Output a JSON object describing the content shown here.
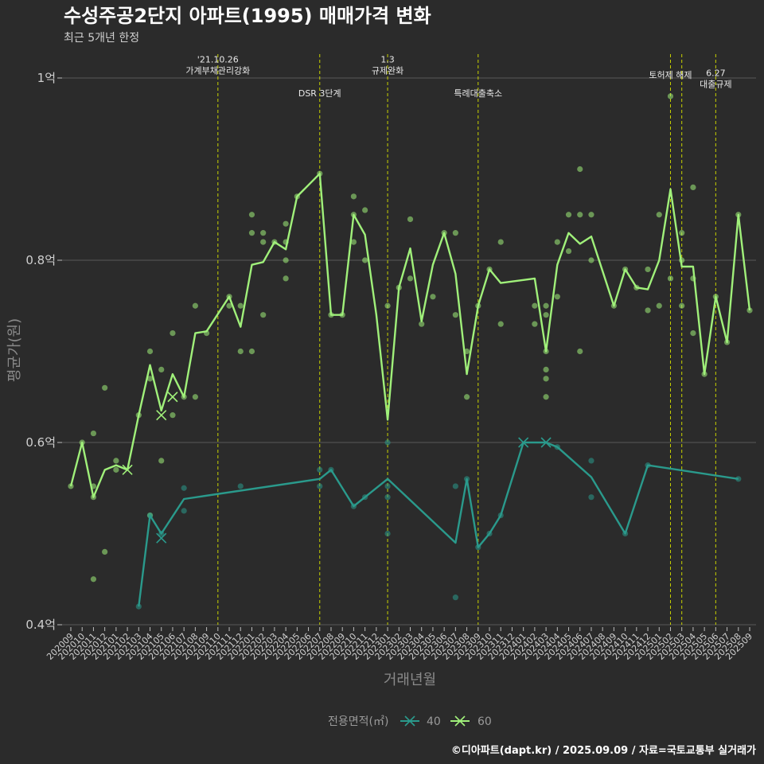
{
  "title": "수성주공2단지 아파트(1995) 매매가격 변화",
  "subtitle": "최근 5개년 한정",
  "caption": "©디아파트(dapt.kr) / 2025.09.09 / 자료=국토교통부 실거래가",
  "colors": {
    "background": "#2b2b2b",
    "grid": "#5a5a5a",
    "event_line": "#c8d200",
    "series_40": "#2a9a8c",
    "series_60": "#a0f07a"
  },
  "chart_data": {
    "type": "line",
    "xlabel": "거래년월",
    "ylabel": "평균가(원)",
    "ylim": [
      0.4,
      1.0
    ],
    "y_ticks": [
      {
        "value": 0.4,
        "label": "0.4억"
      },
      {
        "value": 0.6,
        "label": "0.6억"
      },
      {
        "value": 0.8,
        "label": "0.8억"
      },
      {
        "value": 1.0,
        "label": "1억"
      }
    ],
    "categories": [
      "202009",
      "202010",
      "202011",
      "202012",
      "202101",
      "202102",
      "202103",
      "202104",
      "202105",
      "202106",
      "202107",
      "202108",
      "202109",
      "202110",
      "202111",
      "202112",
      "202201",
      "202202",
      "202203",
      "202204",
      "202205",
      "202206",
      "202207",
      "202208",
      "202209",
      "202210",
      "202211",
      "202212",
      "202301",
      "202302",
      "202303",
      "202304",
      "202305",
      "202306",
      "202307",
      "202308",
      "202309",
      "202310",
      "202311",
      "202312",
      "202401",
      "202402",
      "202403",
      "202404",
      "202405",
      "202406",
      "202407",
      "202408",
      "202409",
      "202410",
      "202411",
      "202412",
      "202501",
      "202502",
      "202503",
      "202504",
      "202505",
      "202506",
      "202507",
      "202508",
      "202509"
    ],
    "legend": {
      "title": "전용면적(㎡)",
      "position": "bottom",
      "items": [
        "40",
        "60"
      ]
    },
    "events": [
      {
        "x": 13,
        "label": "'21.10.26\n가계부채관리강화",
        "label_y": 1.005
      },
      {
        "x": 22,
        "label": "DSR 3단계",
        "label_y": 0.98
      },
      {
        "x": 28,
        "label": "1.3\n규제완화",
        "label_y": 1.005
      },
      {
        "x": 36,
        "label": "특례대출축소",
        "label_y": 0.98
      },
      {
        "x": 53,
        "label": "토허제 해제",
        "label_y": 1.0
      },
      {
        "x": 54,
        "label": "",
        "label_y": 1.0
      },
      {
        "x": 57,
        "label": "6.27\n대출규제",
        "label_y": 0.99
      }
    ],
    "series": [
      {
        "name": "60",
        "color": "#a0f07a",
        "line": [
          [
            0,
            0.552
          ],
          [
            1,
            0.6
          ],
          [
            2,
            0.54
          ],
          [
            3,
            0.57
          ],
          [
            4,
            0.575
          ],
          [
            5,
            0.57
          ],
          [
            6,
            0.63
          ],
          [
            7,
            0.685
          ],
          [
            8,
            0.635
          ],
          [
            9,
            0.675
          ],
          [
            10,
            0.65
          ],
          [
            11,
            0.72
          ],
          [
            12,
            0.722
          ],
          [
            14,
            0.76
          ],
          [
            15,
            0.727
          ],
          [
            16,
            0.795
          ],
          [
            17,
            0.798
          ],
          [
            18,
            0.82
          ],
          [
            19,
            0.812
          ],
          [
            20,
            0.87
          ],
          [
            22,
            0.895
          ],
          [
            23,
            0.74
          ],
          [
            24,
            0.74
          ],
          [
            25,
            0.85
          ],
          [
            26,
            0.828
          ],
          [
            27,
            0.74
          ],
          [
            28,
            0.625
          ],
          [
            29,
            0.77
          ],
          [
            30,
            0.813
          ],
          [
            31,
            0.733
          ],
          [
            32,
            0.795
          ],
          [
            33,
            0.83
          ],
          [
            34,
            0.785
          ],
          [
            35,
            0.675
          ],
          [
            36,
            0.75
          ],
          [
            37,
            0.79
          ],
          [
            38,
            0.775
          ],
          [
            41,
            0.78
          ],
          [
            42,
            0.7
          ],
          [
            43,
            0.795
          ],
          [
            44,
            0.83
          ],
          [
            45,
            0.818
          ],
          [
            46,
            0.826
          ],
          [
            48,
            0.75
          ],
          [
            49,
            0.79
          ],
          [
            50,
            0.77
          ],
          [
            51,
            0.768
          ],
          [
            52,
            0.8
          ],
          [
            53,
            0.878
          ],
          [
            54,
            0.793
          ],
          [
            55,
            0.793
          ],
          [
            56,
            0.675
          ],
          [
            57,
            0.76
          ],
          [
            58,
            0.71
          ],
          [
            59,
            0.85
          ],
          [
            60,
            0.745
          ]
        ],
        "points": [
          [
            0,
            0.552
          ],
          [
            1,
            0.6
          ],
          [
            2,
            0.552
          ],
          [
            2,
            0.54
          ],
          [
            2,
            0.61
          ],
          [
            2,
            0.45
          ],
          [
            3,
            0.66
          ],
          [
            3,
            0.48
          ],
          [
            4,
            0.58
          ],
          [
            4,
            0.57
          ],
          [
            6,
            0.63
          ],
          [
            7,
            0.7
          ],
          [
            7,
            0.67
          ],
          [
            7,
            0.52
          ],
          [
            8,
            0.68
          ],
          [
            8,
            0.58
          ],
          [
            9,
            0.72
          ],
          [
            9,
            0.63
          ],
          [
            10,
            0.65
          ],
          [
            11,
            0.75
          ],
          [
            11,
            0.65
          ],
          [
            12,
            0.72
          ],
          [
            14,
            0.75
          ],
          [
            14,
            0.76
          ],
          [
            15,
            0.75
          ],
          [
            15,
            0.7
          ],
          [
            16,
            0.85
          ],
          [
            16,
            0.83
          ],
          [
            16,
            0.7
          ],
          [
            17,
            0.83
          ],
          [
            17,
            0.82
          ],
          [
            17,
            0.74
          ],
          [
            18,
            0.82
          ],
          [
            19,
            0.84
          ],
          [
            19,
            0.82
          ],
          [
            19,
            0.8
          ],
          [
            19,
            0.78
          ],
          [
            20,
            0.87
          ],
          [
            22,
            0.895
          ],
          [
            23,
            0.74
          ],
          [
            24,
            0.74
          ],
          [
            25,
            0.87
          ],
          [
            25,
            0.85
          ],
          [
            25,
            0.82
          ],
          [
            26,
            0.855
          ],
          [
            26,
            0.8
          ],
          [
            28,
            0.75
          ],
          [
            29,
            0.77
          ],
          [
            30,
            0.845
          ],
          [
            30,
            0.78
          ],
          [
            31,
            0.73
          ],
          [
            32,
            0.76
          ],
          [
            33,
            0.83
          ],
          [
            34,
            0.83
          ],
          [
            34,
            0.74
          ],
          [
            35,
            0.7
          ],
          [
            35,
            0.65
          ],
          [
            36,
            0.75
          ],
          [
            37,
            0.79
          ],
          [
            38,
            0.82
          ],
          [
            38,
            0.73
          ],
          [
            41,
            0.75
          ],
          [
            41,
            0.73
          ],
          [
            42,
            0.75
          ],
          [
            42,
            0.74
          ],
          [
            42,
            0.7
          ],
          [
            42,
            0.68
          ],
          [
            42,
            0.67
          ],
          [
            42,
            0.65
          ],
          [
            43,
            0.76
          ],
          [
            43,
            0.82
          ],
          [
            44,
            0.85
          ],
          [
            44,
            0.81
          ],
          [
            45,
            0.9
          ],
          [
            45,
            0.85
          ],
          [
            45,
            0.7
          ],
          [
            46,
            0.85
          ],
          [
            46,
            0.8
          ],
          [
            48,
            0.75
          ],
          [
            49,
            0.79
          ],
          [
            50,
            0.77
          ],
          [
            51,
            0.79
          ],
          [
            51,
            0.745
          ],
          [
            52,
            0.85
          ],
          [
            52,
            0.75
          ],
          [
            53,
            0.98
          ],
          [
            53,
            0.78
          ],
          [
            54,
            0.83
          ],
          [
            54,
            0.8
          ],
          [
            54,
            0.75
          ],
          [
            55,
            0.88
          ],
          [
            55,
            0.78
          ],
          [
            55,
            0.72
          ],
          [
            56,
            0.675
          ],
          [
            57,
            0.76
          ],
          [
            58,
            0.71
          ],
          [
            59,
            0.85
          ],
          [
            60,
            0.745
          ]
        ],
        "x_marks": [
          [
            5,
            0.57
          ],
          [
            8,
            0.63
          ],
          [
            9,
            0.65
          ]
        ]
      },
      {
        "name": "40",
        "color": "#2a9a8c",
        "line": [
          [
            6,
            0.42
          ],
          [
            7,
            0.52
          ],
          [
            8,
            0.5
          ],
          [
            10,
            0.538
          ],
          [
            22,
            0.56
          ],
          [
            23,
            0.57
          ],
          [
            25,
            0.53
          ],
          [
            26,
            0.54
          ],
          [
            28,
            0.56
          ],
          [
            34,
            0.49
          ],
          [
            35,
            0.56
          ],
          [
            36,
            0.485
          ],
          [
            37,
            0.5
          ],
          [
            38,
            0.52
          ],
          [
            40,
            0.6
          ],
          [
            42,
            0.6
          ],
          [
            43,
            0.595
          ],
          [
            46,
            0.562
          ],
          [
            49,
            0.5
          ],
          [
            51,
            0.575
          ],
          [
            59,
            0.56
          ]
        ],
        "points": [
          [
            6,
            0.42
          ],
          [
            7,
            0.52
          ],
          [
            8,
            0.5
          ],
          [
            10,
            0.55
          ],
          [
            10,
            0.525
          ],
          [
            15,
            0.552
          ],
          [
            22,
            0.57
          ],
          [
            22,
            0.552
          ],
          [
            23,
            0.57
          ],
          [
            25,
            0.53
          ],
          [
            26,
            0.54
          ],
          [
            28,
            0.6
          ],
          [
            28,
            0.552
          ],
          [
            28,
            0.54
          ],
          [
            28,
            0.5
          ],
          [
            34,
            0.552
          ],
          [
            34,
            0.43
          ],
          [
            35,
            0.56
          ],
          [
            36,
            0.485
          ],
          [
            37,
            0.5
          ],
          [
            38,
            0.52
          ],
          [
            43,
            0.595
          ],
          [
            46,
            0.58
          ],
          [
            46,
            0.54
          ],
          [
            49,
            0.5
          ],
          [
            51,
            0.575
          ],
          [
            59,
            0.56
          ]
        ],
        "x_marks": [
          [
            8,
            0.495
          ],
          [
            40,
            0.6
          ],
          [
            42,
            0.6
          ]
        ]
      }
    ]
  }
}
